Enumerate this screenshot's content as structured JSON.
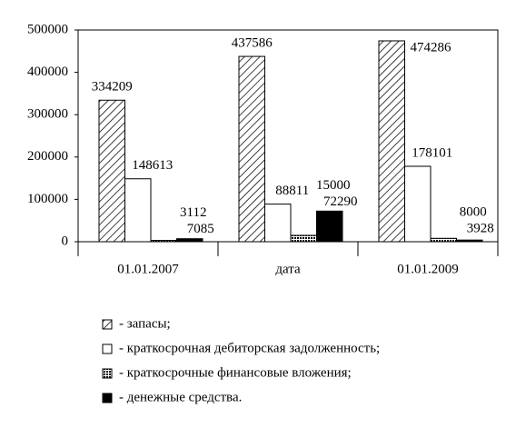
{
  "chart_data": {
    "type": "bar",
    "categories": [
      "01.01.2007",
      "дата",
      "01.01.2009"
    ],
    "series": [
      {
        "name": "- запасы;",
        "color": "#000000",
        "pattern": "diagonal-hatch",
        "values": [
          334209,
          437586,
          474286
        ]
      },
      {
        "name": "- краткосрочная дебиторская задолженность;",
        "color": "#ffffff",
        "pattern": "solid",
        "values": [
          148613,
          88811,
          178101
        ]
      },
      {
        "name": "- краткосрочные финансовые вложения;",
        "color": "#000000",
        "pattern": "dots",
        "values": [
          3112,
          15000,
          8000
        ]
      },
      {
        "name": "- денежные средства.",
        "color": "#000000",
        "pattern": "solid",
        "values": [
          7085,
          72290,
          3928
        ]
      }
    ],
    "ylim": [
      0,
      500000
    ],
    "yticks": [
      0,
      100000,
      200000,
      300000,
      400000,
      500000
    ],
    "grid": false
  }
}
